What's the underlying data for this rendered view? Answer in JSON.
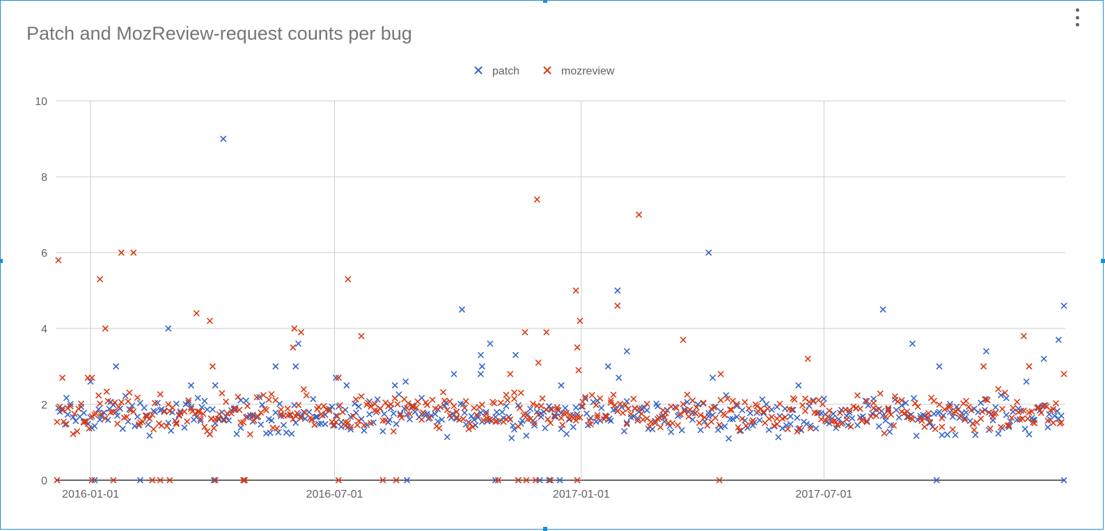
{
  "chart_data": {
    "type": "scatter",
    "title": "Patch and MozReview-request counts per bug",
    "legend_position": "top-center",
    "grid": true,
    "x_axis": {
      "type": "date",
      "range": [
        "2015-12-06",
        "2017-12-28"
      ],
      "ticks": [
        "2016-01-01",
        "2016-07-01",
        "2017-01-01",
        "2017-07-01"
      ]
    },
    "y_axis": {
      "range": [
        0,
        10
      ],
      "ticks": [
        "0",
        "2",
        "4",
        "6",
        "8",
        "10"
      ]
    },
    "series": [
      {
        "name": "patch",
        "color": "#3366cc",
        "marker": "x-icon",
        "points": [
          [
            "2016-04-09",
            9.0
          ],
          [
            "2017-04-06",
            6.0
          ],
          [
            "2017-01-28",
            5.0
          ],
          [
            "2017-12-27",
            4.6
          ],
          [
            "2016-10-04",
            4.5
          ],
          [
            "2017-08-14",
            4.5
          ],
          [
            "2016-02-28",
            4.0
          ],
          [
            "2017-12-23",
            3.7
          ],
          [
            "2016-06-04",
            3.6
          ],
          [
            "2016-10-25",
            3.6
          ],
          [
            "2017-09-05",
            3.6
          ],
          [
            "2017-02-04",
            3.4
          ],
          [
            "2017-10-30",
            3.4
          ],
          [
            "2016-10-18",
            3.3
          ],
          [
            "2016-11-13",
            3.3
          ],
          [
            "2017-12-12",
            3.2
          ],
          [
            "2016-05-18",
            3.0
          ],
          [
            "2016-06-02",
            3.0
          ],
          [
            "2016-10-19",
            3.0
          ],
          [
            "2017-01-21",
            3.0
          ],
          [
            "2017-09-25",
            3.0
          ],
          [
            "2016-01-20",
            3.0
          ],
          [
            "2016-10-18",
            2.8
          ],
          [
            "2016-09-28",
            2.8
          ],
          [
            "2017-01-29",
            2.7
          ],
          [
            "2016-07-02",
            2.7
          ],
          [
            "2017-04-09",
            2.7
          ],
          [
            "2016-01-01",
            2.6
          ],
          [
            "2016-08-23",
            2.6
          ],
          [
            "2017-11-29",
            2.6
          ],
          [
            "2016-07-10",
            2.5
          ],
          [
            "2016-04-03",
            2.5
          ],
          [
            "2016-08-15",
            2.5
          ],
          [
            "2016-12-17",
            2.5
          ],
          [
            "2017-06-12",
            2.5
          ],
          [
            "2016-03-16",
            2.5
          ]
        ],
        "zero_points": [
          "2016-01-04",
          "2016-02-07",
          "2016-04-02",
          "2016-04-24",
          "2016-08-24",
          "2016-10-29",
          "2016-11-15",
          "2016-12-01",
          "2016-12-08",
          "2016-12-16",
          "2017-09-23",
          "2017-12-27"
        ],
        "cluster": {
          "x_from": "2015-12-07",
          "x_to": "2017-12-26",
          "y_min": 1.0,
          "y_max": 2.4,
          "count": 430
        }
      },
      {
        "name": "mozreview",
        "color": "#dc3912",
        "marker": "x-icon",
        "points": [
          [
            "2016-11-29",
            7.4
          ],
          [
            "2017-02-13",
            7.0
          ],
          [
            "2016-01-24",
            6.0
          ],
          [
            "2016-02-02",
            6.0
          ],
          [
            "2015-12-08",
            5.8
          ],
          [
            "2016-01-08",
            5.3
          ],
          [
            "2016-07-11",
            5.3
          ],
          [
            "2016-12-28",
            5.0
          ],
          [
            "2017-01-28",
            4.6
          ],
          [
            "2016-03-20",
            4.4
          ],
          [
            "2016-12-31",
            4.2
          ],
          [
            "2016-03-30",
            4.2
          ],
          [
            "2016-06-01",
            4.0
          ],
          [
            "2016-01-12",
            4.0
          ],
          [
            "2016-06-06",
            3.9
          ],
          [
            "2016-11-20",
            3.9
          ],
          [
            "2016-12-06",
            3.9
          ],
          [
            "2016-07-21",
            3.8
          ],
          [
            "2017-11-27",
            3.8
          ],
          [
            "2017-03-18",
            3.7
          ],
          [
            "2016-05-31",
            3.5
          ],
          [
            "2016-12-29",
            3.5
          ],
          [
            "2017-06-19",
            3.2
          ],
          [
            "2016-11-30",
            3.1
          ],
          [
            "2017-10-28",
            3.0
          ],
          [
            "2017-12-01",
            3.0
          ],
          [
            "2016-04-01",
            3.0
          ],
          [
            "2016-12-30",
            2.9
          ],
          [
            "2015-12-11",
            2.7
          ],
          [
            "2015-12-30",
            2.7
          ],
          [
            "2016-07-04",
            2.7
          ],
          [
            "2016-01-02",
            2.7
          ],
          [
            "2017-12-27",
            2.8
          ],
          [
            "2017-04-15",
            2.8
          ],
          [
            "2016-11-09",
            2.8
          ]
        ],
        "zero_points": [
          "2015-12-07",
          "2016-01-02",
          "2016-01-18",
          "2016-02-16",
          "2016-02-22",
          "2016-02-29",
          "2016-04-03",
          "2016-04-24",
          "2016-04-25",
          "2016-07-04",
          "2016-08-06",
          "2016-08-16",
          "2016-10-31",
          "2016-11-15",
          "2016-11-21",
          "2016-11-28",
          "2016-12-09",
          "2016-12-29",
          "2017-04-14"
        ],
        "cluster": {
          "x_from": "2015-12-07",
          "x_to": "2017-12-26",
          "y_min": 1.0,
          "y_max": 2.5,
          "count": 470
        }
      }
    ]
  }
}
